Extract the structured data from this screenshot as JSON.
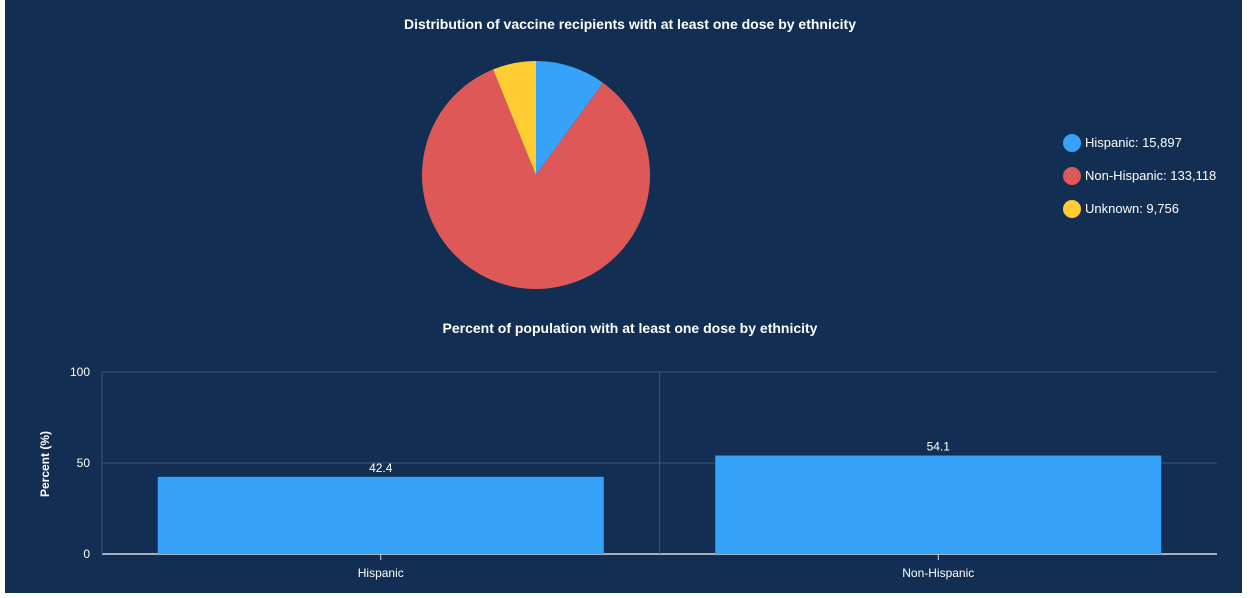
{
  "colors": {
    "background": "#122e52",
    "hispanic": "#36a2fa",
    "non_hispanic": "#dd5857",
    "unknown": "#ffcc33",
    "bar": "#36a2fa",
    "text": "#ffffff",
    "grid": "#3a5676"
  },
  "chart_data": [
    {
      "type": "pie",
      "title": "Distribution of vaccine recipients with at least one dose by ethnicity",
      "slices": [
        {
          "name": "Hispanic",
          "value": 15897,
          "label": "15,897",
          "color": "#36a2fa"
        },
        {
          "name": "Non-Hispanic",
          "value": 133118,
          "label": "133,118",
          "color": "#dd5857"
        },
        {
          "name": "Unknown",
          "value": 9756,
          "label": "9,756",
          "color": "#ffcc33"
        }
      ],
      "legend_position": "right"
    },
    {
      "type": "bar",
      "title": "Percent of population with at least one dose by ethnicity",
      "categories": [
        "Hispanic",
        "Non-Hispanic"
      ],
      "values": [
        42.4,
        54.1
      ],
      "value_labels": [
        "42.4",
        "54.1"
      ],
      "xlabel": "",
      "ylabel": "Percent (%)",
      "ylim": [
        0,
        100
      ],
      "yticks": [
        "0",
        "50",
        "100"
      ],
      "grid": true
    }
  ]
}
